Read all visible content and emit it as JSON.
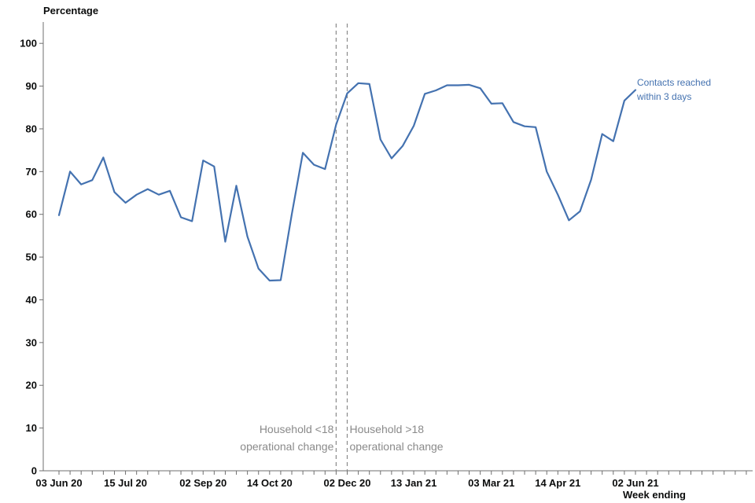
{
  "chart_data": {
    "type": "line",
    "ylabel": "Percentage",
    "xlabel": "Week ending",
    "ylim": [
      0,
      105
    ],
    "yticks": [
      0,
      10,
      20,
      30,
      40,
      50,
      60,
      70,
      80,
      90,
      100
    ],
    "x_range": [
      "2020-06-03",
      "2021-08-25"
    ],
    "xtick_labels": [
      {
        "date": "2020-06-03",
        "label": "03 Jun 20"
      },
      {
        "date": "2020-07-15",
        "label": "15 Jul 20"
      },
      {
        "date": "2020-09-02",
        "label": "02 Sep 20"
      },
      {
        "date": "2020-10-14",
        "label": "14 Oct 20"
      },
      {
        "date": "2020-12-02",
        "label": "02 Dec 20"
      },
      {
        "date": "2021-01-13",
        "label": "13 Jan 21"
      },
      {
        "date": "2021-03-03",
        "label": "03 Mar 21"
      },
      {
        "date": "2021-04-14",
        "label": "14 Apr 21"
      },
      {
        "date": "2021-06-02",
        "label": "02 Jun 21"
      }
    ],
    "minor_ticks": "weekly",
    "grid": false,
    "series": [
      {
        "name": "Contacts reached\nwithin 3 days",
        "color": "#4472b0",
        "dates": [
          "2020-06-03",
          "2020-06-10",
          "2020-06-17",
          "2020-06-24",
          "2020-07-01",
          "2020-07-08",
          "2020-07-15",
          "2020-07-22",
          "2020-07-29",
          "2020-08-05",
          "2020-08-12",
          "2020-08-19",
          "2020-08-26",
          "2020-09-02",
          "2020-09-09",
          "2020-09-16",
          "2020-09-23",
          "2020-09-30",
          "2020-10-07",
          "2020-10-14",
          "2020-10-21",
          "2020-10-28",
          "2020-11-04",
          "2020-11-11",
          "2020-11-18",
          "2020-11-25",
          "2020-12-02",
          "2020-12-09",
          "2020-12-16",
          "2020-12-23",
          "2020-12-30",
          "2021-01-06",
          "2021-01-13",
          "2021-01-20",
          "2021-01-27",
          "2021-02-03",
          "2021-02-10",
          "2021-02-17",
          "2021-02-24",
          "2021-03-03",
          "2021-03-10",
          "2021-03-17",
          "2021-03-24",
          "2021-03-31",
          "2021-04-07",
          "2021-04-14",
          "2021-04-21",
          "2021-04-28",
          "2021-05-05",
          "2021-05-12",
          "2021-05-19",
          "2021-05-26",
          "2021-06-02"
        ],
        "values": [
          59.8,
          70.0,
          67.0,
          68.0,
          73.3,
          65.2,
          62.7,
          64.6,
          65.9,
          64.6,
          65.5,
          59.3,
          58.4,
          72.6,
          71.2,
          53.6,
          66.7,
          54.8,
          47.3,
          44.5,
          44.6,
          60.0,
          74.4,
          71.6,
          70.6,
          81.0,
          88.3,
          90.7,
          90.5,
          77.5,
          73.1,
          76.0,
          80.7,
          88.2,
          89.0,
          90.2,
          90.2,
          90.3,
          89.5,
          85.9,
          86.0,
          81.6,
          80.6,
          80.4,
          70.0,
          64.6,
          58.6,
          60.7,
          68.1,
          78.8,
          77.1,
          86.6,
          89.1
        ]
      }
    ],
    "annotations": [
      {
        "date": "2020-11-25",
        "text": "Household <18\noperational change",
        "align": "right"
      },
      {
        "date": "2020-12-02",
        "text": "Household >18\noperational change",
        "align": "left"
      }
    ]
  }
}
